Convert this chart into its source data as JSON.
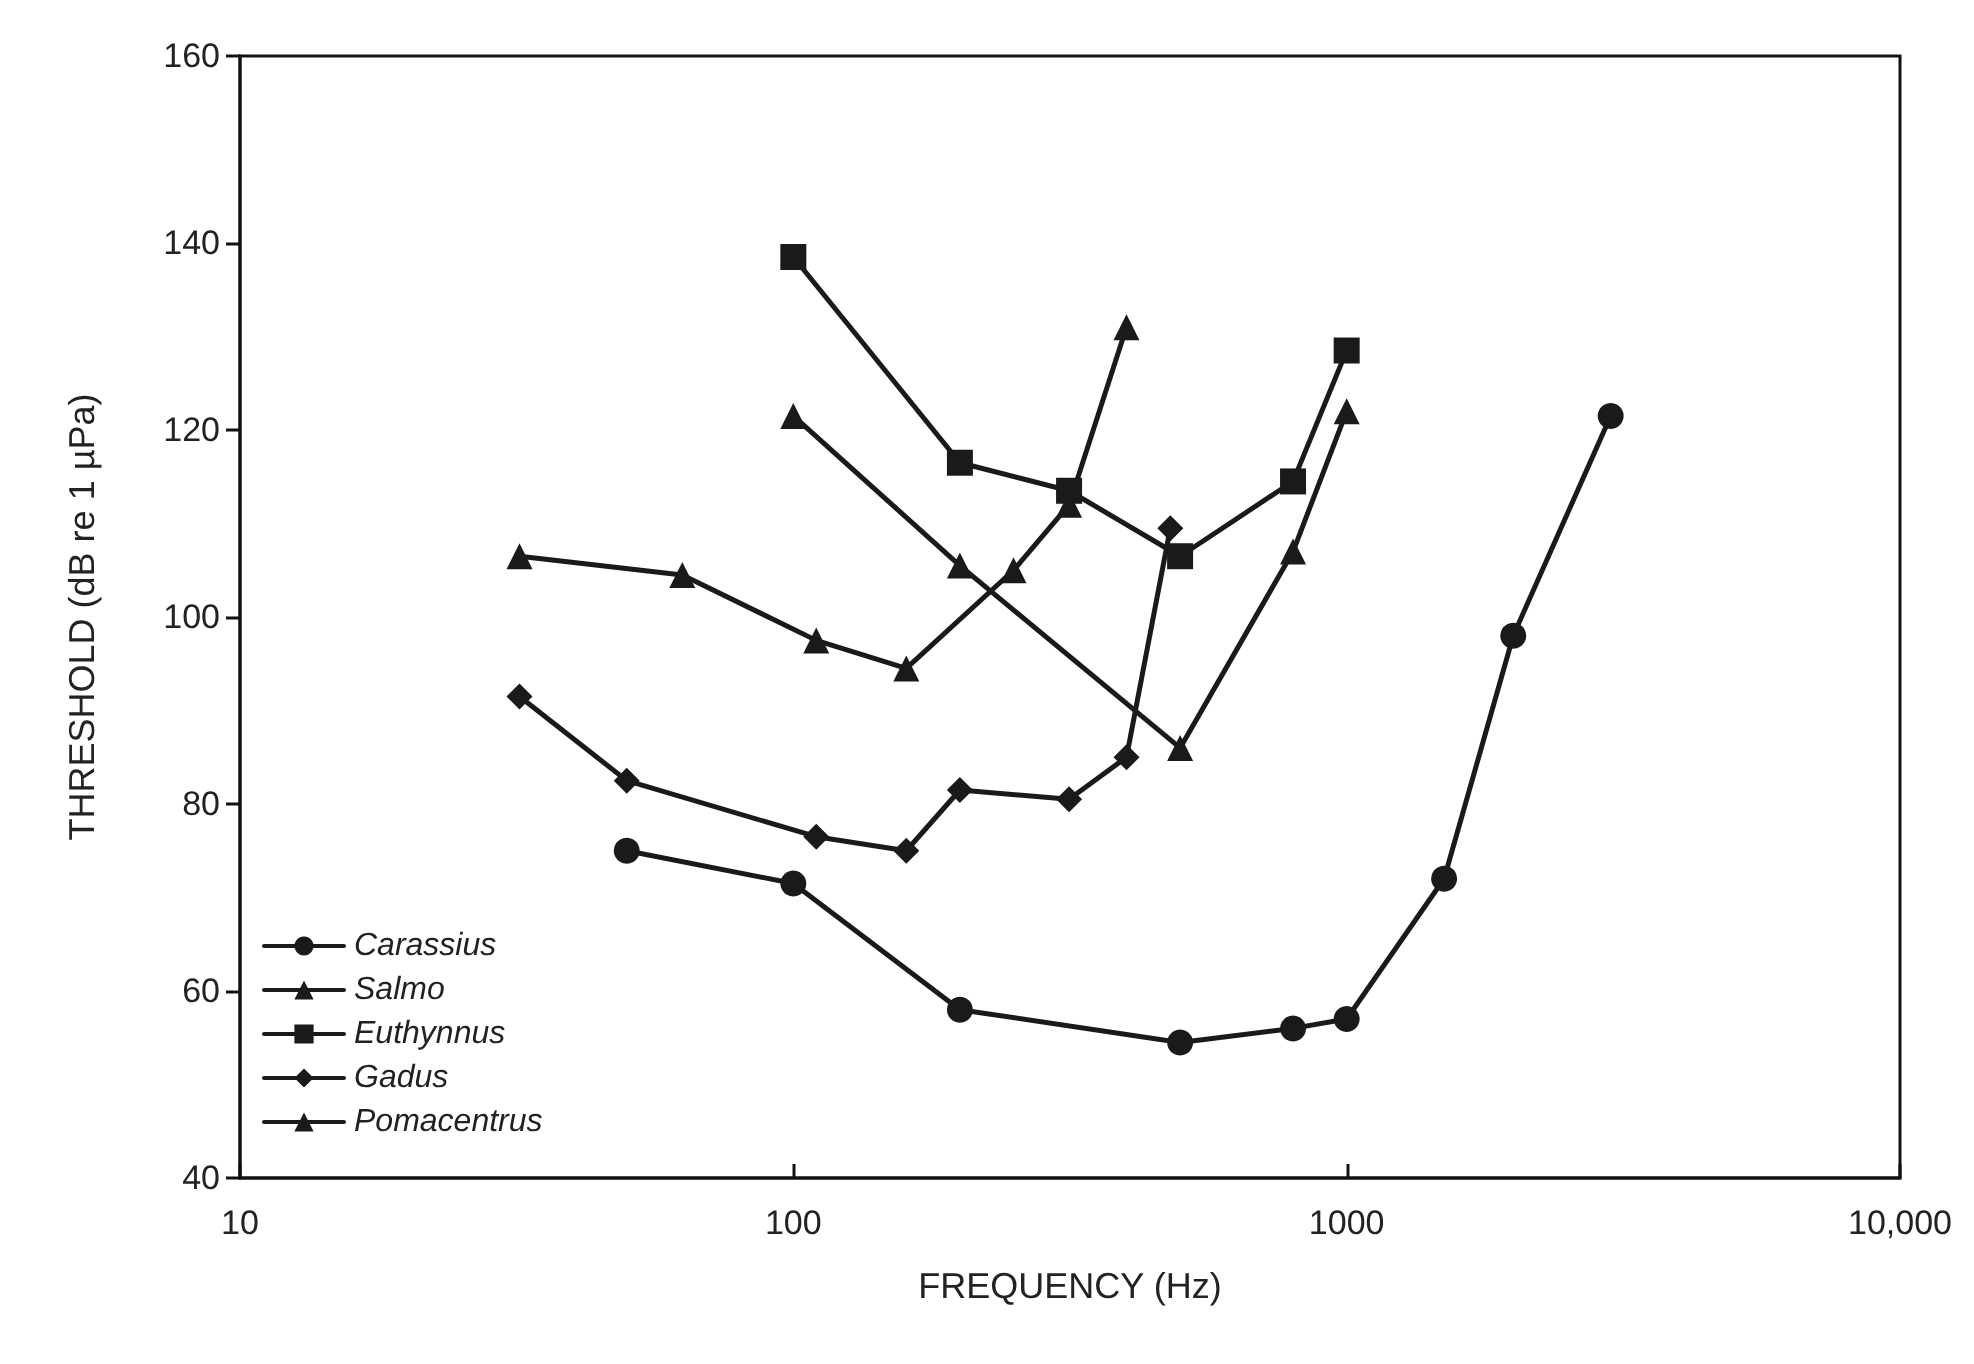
{
  "chart_data": {
    "type": "line",
    "xlabel": "FREQUENCY (Hz)",
    "ylabel": "THRESHOLD (dB re 1 µPa)",
    "log": "x",
    "xlim": [
      10,
      10000
    ],
    "xticks": [
      10,
      100,
      1000,
      {
        "value": 10000,
        "label": "10,000"
      }
    ],
    "ylim": [
      40,
      160
    ],
    "yticks": [
      40,
      60,
      80,
      100,
      120,
      140,
      160
    ],
    "grid": false,
    "legend": "bottom left",
    "line_style": "solid",
    "series": [
      {
        "name": "Carassius",
        "color": "#1a1a1a",
        "marker": "circle",
        "x": [
          50,
          100,
          200,
          500,
          800,
          1000,
          1500,
          2000,
          3000
        ],
        "values": [
          75,
          71.5,
          58,
          54.5,
          56,
          57,
          72,
          98,
          121.5
        ]
      },
      {
        "name": "Salmo",
        "color": "#1a1a1a",
        "marker": "triangle",
        "x": [
          32,
          63,
          110,
          160,
          250,
          315,
          400
        ],
        "values": [
          106.5,
          104.5,
          97.5,
          94.5,
          105,
          112,
          131
        ]
      },
      {
        "name": "Euthynnus",
        "color": "#1a1a1a",
        "marker": "square",
        "x": [
          100,
          200,
          315,
          500,
          800,
          1000
        ],
        "values": [
          138.5,
          116.5,
          113.5,
          106.5,
          114.5,
          128.5
        ]
      },
      {
        "name": "Gadus",
        "color": "#1a1a1a",
        "marker": "diamond",
        "x": [
          32,
          50,
          110,
          160,
          200,
          315,
          400,
          480
        ],
        "values": [
          91.5,
          82.5,
          76.5,
          75,
          81.5,
          80.5,
          85,
          109.5
        ]
      },
      {
        "name": "Pomacentrus",
        "color": "#1a1a1a",
        "marker": "triangle",
        "x": [
          100,
          200,
          500,
          800,
          1000
        ],
        "values": [
          121.5,
          105.5,
          86,
          107,
          122
        ]
      }
    ]
  }
}
